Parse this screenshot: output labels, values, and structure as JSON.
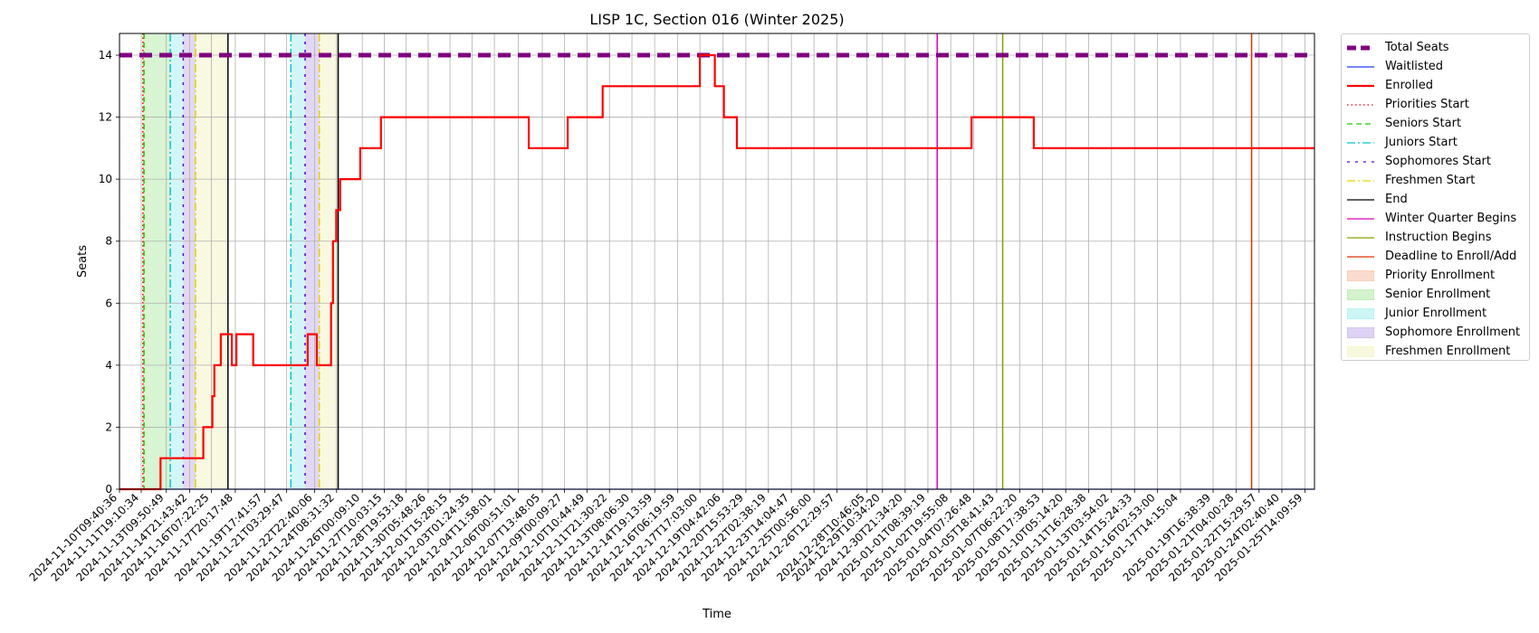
{
  "chart_data": {
    "type": "line",
    "title": "LISP 1C, Section 016 (Winter 2025)",
    "xlabel": "Time",
    "ylabel": "Seats",
    "ylim": [
      0,
      14.7
    ],
    "yticks": [
      0,
      2,
      4,
      6,
      8,
      10,
      12,
      14
    ],
    "grid": true,
    "legend_position": "outside-right",
    "x_start": "2024-11-10T09:40:36",
    "x_end": "2025-01-26T05:00:00",
    "xtick_labels": [
      "2024-11-10T09:40:36",
      "2024-11-11T19:10:34",
      "2024-11-13T09:50:49",
      "2024-11-14T21:43:42",
      "2024-11-16T07:22:25",
      "2024-11-17T20:17:48",
      "2024-11-19T17:41:57",
      "2024-11-21T03:29:47",
      "2024-11-22T22:40:06",
      "2024-11-24T08:31:32",
      "2024-11-26T00:09:10",
      "2024-11-27T10:03:15",
      "2024-11-28T19:53:18",
      "2024-11-30T05:48:26",
      "2024-12-01T15:28:15",
      "2024-12-03T01:24:35",
      "2024-12-04T11:58:01",
      "2024-12-06T00:51:01",
      "2024-12-07T13:48:05",
      "2024-12-09T00:09:27",
      "2024-12-10T10:44:49",
      "2024-12-11T21:30:22",
      "2024-12-13T08:06:30",
      "2024-12-14T19:13:59",
      "2024-12-16T06:19:59",
      "2024-12-17T17:03:00",
      "2024-12-19T04:42:06",
      "2024-12-20T15:53:29",
      "2024-12-22T02:38:19",
      "2024-12-23T14:04:47",
      "2024-12-25T00:56:00",
      "2024-12-26T12:29:57",
      "2024-12-28T10:46:05",
      "2024-12-29T10:34:20",
      "2024-12-30T21:34:20",
      "2025-01-01T08:39:19",
      "2025-01-02T19:55:08",
      "2025-01-04T07:26:48",
      "2025-01-05T18:41:43",
      "2025-01-07T06:22:20",
      "2025-01-08T17:38:53",
      "2025-01-10T05:14:20",
      "2025-01-11T16:28:38",
      "2025-01-13T03:54:02",
      "2025-01-14T15:24:33",
      "2025-01-16T02:53:00",
      "2025-01-17T14:15:04",
      "2025-01-19T16:38:39",
      "2025-01-21T04:00:28",
      "2025-01-22T15:29:57",
      "2025-01-24T02:40:40",
      "2025-01-25T14:09:59"
    ],
    "series": [
      {
        "name": "Total Seats",
        "color": "#800080",
        "style": "dashed-thick",
        "points": [
          [
            "2024-11-10T09:40:36",
            14
          ],
          [
            "2025-01-26T05:00:00",
            14
          ]
        ]
      },
      {
        "name": "Waitlisted",
        "color": "#1f3fff",
        "style": "solid",
        "points": [
          [
            "2024-11-10T09:40:36",
            0
          ],
          [
            "2025-01-26T05:00:00",
            0
          ]
        ]
      },
      {
        "name": "Enrolled",
        "color": "#ff0000",
        "style": "solid-thick",
        "points": [
          [
            "2024-11-10T09:40:36",
            0
          ],
          [
            "2024-11-13T01:00:00",
            0
          ],
          [
            "2024-11-13T01:00:00",
            1
          ],
          [
            "2024-11-15T19:00:00",
            1
          ],
          [
            "2024-11-15T19:00:00",
            2
          ],
          [
            "2024-11-16T09:00:00",
            2
          ],
          [
            "2024-11-16T09:00:00",
            3
          ],
          [
            "2024-11-16T12:00:00",
            3
          ],
          [
            "2024-11-16T12:00:00",
            4
          ],
          [
            "2024-11-16T22:00:00",
            4
          ],
          [
            "2024-11-16T22:00:00",
            5
          ],
          [
            "2024-11-17T15:00:00",
            5
          ],
          [
            "2024-11-17T15:00:00",
            4
          ],
          [
            "2024-11-17T22:00:00",
            4
          ],
          [
            "2024-11-17T22:00:00",
            5
          ],
          [
            "2024-11-19T00:00:00",
            5
          ],
          [
            "2024-11-19T00:00:00",
            4
          ],
          [
            "2024-11-22T12:00:00",
            4
          ],
          [
            "2024-11-22T12:00:00",
            5
          ],
          [
            "2024-11-23T02:00:00",
            5
          ],
          [
            "2024-11-23T02:00:00",
            4
          ],
          [
            "2024-11-24T00:00:00",
            4
          ],
          [
            "2024-11-24T00:00:00",
            6
          ],
          [
            "2024-11-24T03:00:00",
            6
          ],
          [
            "2024-11-24T03:00:00",
            8
          ],
          [
            "2024-11-24T08:00:00",
            8
          ],
          [
            "2024-11-24T08:00:00",
            9
          ],
          [
            "2024-11-24T14:00:00",
            9
          ],
          [
            "2024-11-24T14:00:00",
            10
          ],
          [
            "2024-11-25T21:00:00",
            10
          ],
          [
            "2024-11-25T21:00:00",
            11
          ],
          [
            "2024-11-27T05:00:00",
            11
          ],
          [
            "2024-11-27T05:00:00",
            12
          ],
          [
            "2024-12-06T17:00:00",
            12
          ],
          [
            "2024-12-06T17:00:00",
            11
          ],
          [
            "2024-12-09T05:00:00",
            11
          ],
          [
            "2024-12-09T05:00:00",
            12
          ],
          [
            "2024-12-11T11:00:00",
            12
          ],
          [
            "2024-12-11T11:00:00",
            13
          ],
          [
            "2024-12-17T17:00:00",
            13
          ],
          [
            "2024-12-17T17:00:00",
            14
          ],
          [
            "2024-12-18T16:00:00",
            14
          ],
          [
            "2024-12-18T16:00:00",
            13
          ],
          [
            "2024-12-19T06:00:00",
            13
          ],
          [
            "2024-12-19T06:00:00",
            12
          ],
          [
            "2024-12-20T02:00:00",
            12
          ],
          [
            "2024-12-20T02:00:00",
            11
          ],
          [
            "2025-01-04T04:00:00",
            11
          ],
          [
            "2025-01-04T04:00:00",
            12
          ],
          [
            "2025-01-08T04:00:00",
            12
          ],
          [
            "2025-01-08T04:00:00",
            11
          ],
          [
            "2025-01-26T05:00:00",
            11
          ]
        ]
      }
    ],
    "vertical_lines": [
      {
        "name": "Priorities Start",
        "color": "#ff0000",
        "style": "dotted",
        "times": [
          "2024-11-11T21:45:00"
        ]
      },
      {
        "name": "Seniors Start",
        "color": "#22cc00",
        "style": "dashed",
        "times": [
          "2024-11-11T23:30:00"
        ]
      },
      {
        "name": "Juniors Start",
        "color": "#00c8d0",
        "style": "dashdot",
        "times": [
          "2024-11-13T16:00:00",
          "2024-11-21T10:00:00"
        ]
      },
      {
        "name": "Sophomores Start",
        "color": "#5a00d0",
        "style": "dashdotted",
        "times": [
          "2024-11-14T12:00:00",
          "2024-11-22T08:00:00"
        ]
      },
      {
        "name": "Freshmen Start",
        "color": "#e8d000",
        "style": "dashdot",
        "times": [
          "2024-11-15T07:00:00",
          "2024-11-23T06:00:00"
        ]
      },
      {
        "name": "End",
        "color": "#000000",
        "style": "solid",
        "times": [
          "2024-11-17T09:00:00",
          "2024-11-24T11:00:00"
        ]
      },
      {
        "name": "Winter Quarter Begins",
        "color": "#e000b0",
        "style": "solid",
        "times": [
          "2025-01-01T23:00:00"
        ]
      },
      {
        "name": "Instruction Begins",
        "color": "#80a000",
        "style": "solid",
        "times": [
          "2025-01-06T04:00:00"
        ]
      },
      {
        "name": "Deadline to Enroll/Add",
        "color": "#e03000",
        "style": "solid",
        "times": [
          "2025-01-22T04:00:00"
        ]
      }
    ],
    "shaded_regions": [
      {
        "name": "Priority Enrollment",
        "color": "#f4a582",
        "ranges": [
          [
            "2024-11-11T21:45:00",
            "2024-11-11T23:30:00"
          ]
        ]
      },
      {
        "name": "Senior Enrollment",
        "color": "#90e080",
        "ranges": [
          [
            "2024-11-11T23:30:00",
            "2024-11-13T16:00:00"
          ]
        ]
      },
      {
        "name": "Junior Enrollment",
        "color": "#80e8e8",
        "ranges": [
          [
            "2024-11-13T16:00:00",
            "2024-11-14T12:00:00"
          ],
          [
            "2024-11-21T10:00:00",
            "2024-11-22T08:00:00"
          ]
        ]
      },
      {
        "name": "Sophomore Enrollment",
        "color": "#b090e0",
        "ranges": [
          [
            "2024-11-14T12:00:00",
            "2024-11-15T07:00:00"
          ],
          [
            "2024-11-22T08:00:00",
            "2024-11-23T06:00:00"
          ]
        ]
      },
      {
        "name": "Freshmen Enrollment",
        "color": "#eeeeaa",
        "ranges": [
          [
            "2024-11-15T07:00:00",
            "2024-11-17T09:00:00"
          ],
          [
            "2024-11-23T06:00:00",
            "2024-11-24T11:00:00"
          ]
        ]
      }
    ],
    "legend": [
      "Total Seats",
      "Waitlisted",
      "Enrolled",
      "Priorities Start",
      "Seniors Start",
      "Juniors Start",
      "Sophomores Start",
      "Freshmen Start",
      "End",
      "Winter Quarter Begins",
      "Instruction Begins",
      "Deadline to Enroll/Add",
      "Priority Enrollment",
      "Senior Enrollment",
      "Junior Enrollment",
      "Sophomore Enrollment",
      "Freshmen Enrollment"
    ]
  }
}
